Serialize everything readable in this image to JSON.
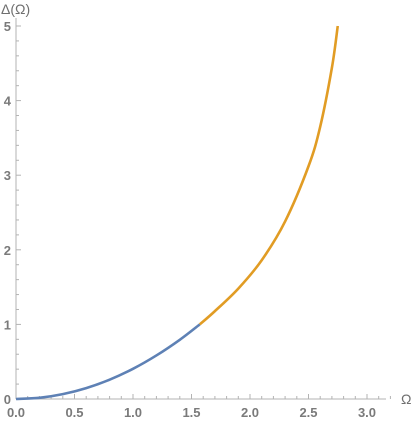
{
  "chart_data": {
    "type": "line",
    "title": "",
    "xlabel": "Ω",
    "ylabel": "Δ(Ω)",
    "xlim": [
      0,
      3.2
    ],
    "ylim": [
      0,
      5
    ],
    "grid": false,
    "x_ticks": [
      0.0,
      0.5,
      1.0,
      1.5,
      2.0,
      2.5,
      3.0
    ],
    "x_tick_labels": [
      "0.0",
      "0.5",
      "1.0",
      "1.5",
      "2.0",
      "2.5",
      "3.0"
    ],
    "y_ticks": [
      0,
      1,
      2,
      3,
      4,
      5
    ],
    "y_tick_labels": [
      "0",
      "1",
      "2",
      "3",
      "4",
      "5"
    ],
    "series": [
      {
        "color": "#5e81b5",
        "points": [
          [
            0.0,
            0.0
          ],
          [
            0.2,
            0.016
          ],
          [
            0.4,
            0.065
          ],
          [
            0.6,
            0.146
          ],
          [
            0.8,
            0.259
          ],
          [
            1.0,
            0.405
          ],
          [
            1.2,
            0.584
          ],
          [
            1.4,
            0.794
          ],
          [
            1.5708,
            1.0
          ]
        ]
      },
      {
        "color": "#e19c24",
        "points": [
          [
            1.5708,
            1.0
          ],
          [
            1.7,
            1.178
          ],
          [
            1.9,
            1.48
          ],
          [
            2.1,
            1.86
          ],
          [
            2.3,
            2.38
          ],
          [
            2.5,
            3.12
          ],
          [
            2.6,
            3.65
          ],
          [
            2.7,
            4.44
          ],
          [
            2.75,
            5.0
          ]
        ]
      }
    ]
  }
}
